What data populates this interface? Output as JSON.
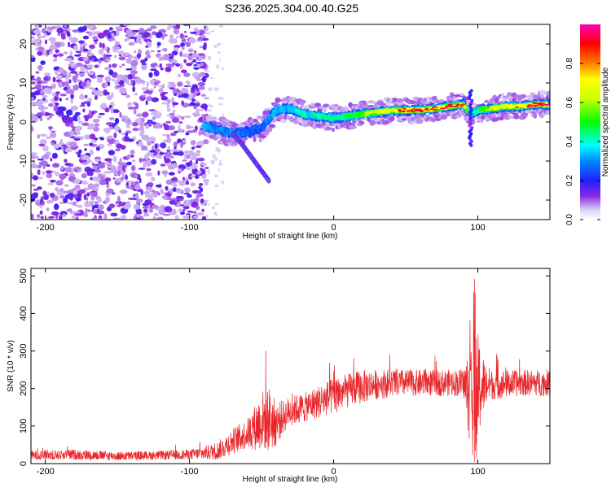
{
  "title": "S236.2025.304.00.40.G25",
  "chart_data": [
    {
      "type": "heatmap",
      "name": "spectrogram",
      "xlabel": "Height of straight line (km)",
      "ylabel": "Frequency (Hz)",
      "xlim": [
        -210,
        150
      ],
      "ylim": [
        -25,
        25
      ],
      "xticks": [
        -200,
        -100,
        0,
        100
      ],
      "yticks": [
        -20,
        -10,
        0,
        10,
        20
      ],
      "noise_region": [
        -210,
        -88
      ],
      "ridge": {
        "x": [
          -90,
          -80,
          -70,
          -60,
          -50,
          -40,
          -30,
          -20,
          -10,
          0,
          10,
          20,
          30,
          40,
          50,
          60,
          70,
          80,
          90,
          95,
          100,
          110,
          120,
          130,
          140,
          150
        ],
        "y": [
          -1,
          -2,
          -3,
          -2.5,
          -1.5,
          3,
          3.5,
          2,
          1.5,
          1,
          1.5,
          2,
          2.5,
          3,
          3,
          3,
          3.5,
          4,
          4.5,
          2,
          3,
          3.5,
          4,
          4,
          4.5,
          4.5
        ],
        "amp": [
          0.35,
          0.3,
          0.3,
          0.25,
          0.25,
          0.35,
          0.35,
          0.4,
          0.4,
          0.4,
          0.45,
          0.55,
          0.6,
          0.7,
          0.85,
          0.85,
          0.8,
          0.85,
          0.8,
          0.3,
          0.45,
          0.65,
          0.75,
          0.8,
          0.9,
          0.9
        ]
      },
      "branch": {
        "x": [
          -70,
          -65,
          -60,
          -55,
          -50,
          -45
        ],
        "y": [
          -3,
          -5,
          -7.5,
          -10,
          -12.5,
          -15
        ]
      },
      "colorbar": {
        "label": "Normalized spectral amplitude",
        "range": [
          0,
          1
        ],
        "ticks": [
          "0.0",
          "0.2",
          "0.4",
          "0.6",
          "0.8"
        ]
      }
    },
    {
      "type": "line",
      "name": "snr",
      "xlabel": "Height of straight line (km)",
      "ylabel": "SNR (10 * v/v)",
      "xlim": [
        -210,
        150
      ],
      "ylim": [
        0,
        520
      ],
      "xticks": [
        -200,
        -100,
        0,
        100
      ],
      "yticks": [
        0,
        100,
        200,
        300,
        400,
        500
      ],
      "color": "#e8262a",
      "envelope": {
        "x": [
          -210,
          -180,
          -150,
          -120,
          -100,
          -90,
          -80,
          -70,
          -60,
          -55,
          -50,
          -45,
          -40,
          -35,
          -30,
          -20,
          -10,
          0,
          10,
          20,
          30,
          40,
          60,
          80,
          90,
          95,
          97,
          100,
          105,
          110,
          130,
          150
        ],
        "base": [
          22,
          24,
          20,
          22,
          24,
          28,
          35,
          60,
          80,
          95,
          115,
          120,
          105,
          125,
          140,
          150,
          165,
          180,
          195,
          205,
          210,
          215,
          215,
          215,
          215,
          180,
          140,
          200,
          210,
          210,
          215,
          215
        ],
        "spread": [
          12,
          14,
          12,
          12,
          14,
          18,
          25,
          35,
          40,
          60,
          80,
          90,
          60,
          45,
          40,
          40,
          45,
          50,
          45,
          45,
          40,
          38,
          35,
          35,
          38,
          150,
          200,
          150,
          60,
          40,
          35,
          35
        ]
      }
    }
  ]
}
